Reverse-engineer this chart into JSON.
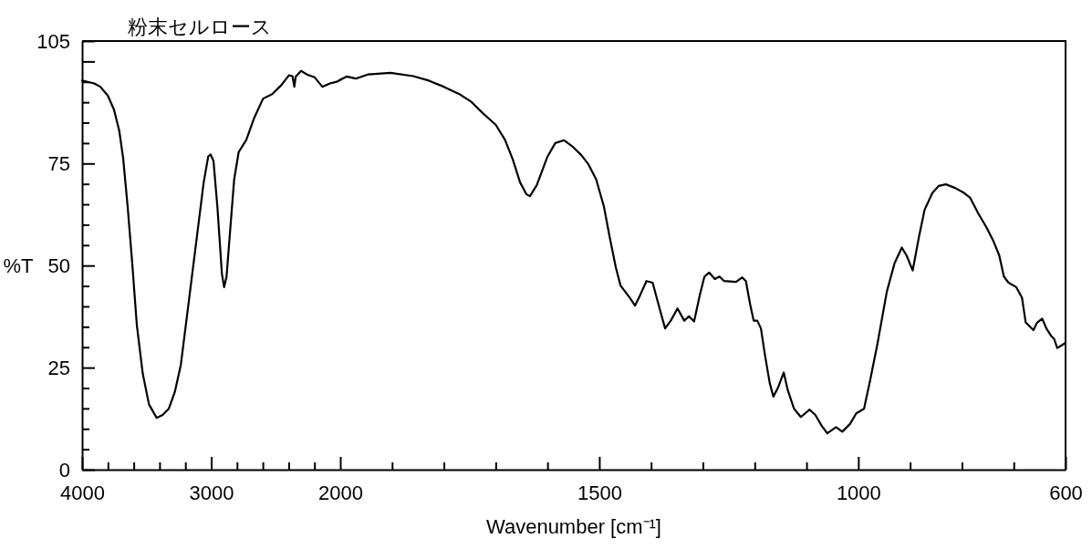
{
  "chart_data": [
    {
      "type": "line",
      "title": "粉末セルロース",
      "ylabel": "%T",
      "line_style": "solid",
      "color": "#000000",
      "xlim": [
        4000,
        2000
      ],
      "ylim": [
        0,
        105
      ],
      "xticks": [
        4000,
        {
          "value": 3800,
          "label": null
        },
        {
          "value": 3600,
          "label": null
        },
        {
          "value": 3400,
          "label": null
        },
        {
          "value": 3200,
          "label": null
        },
        3000,
        {
          "value": 2800,
          "label": null
        },
        {
          "value": 2600,
          "label": null
        },
        {
          "value": 2400,
          "label": null
        },
        {
          "value": 2200,
          "label": null
        },
        2000
      ],
      "yticks": [
        0,
        {
          "value": 5,
          "label": null
        },
        {
          "value": 10,
          "label": null
        },
        {
          "value": 15,
          "label": null
        },
        {
          "value": 20,
          "label": null
        },
        25,
        {
          "value": 30,
          "label": null
        },
        {
          "value": 35,
          "label": null
        },
        {
          "value": 40,
          "label": null
        },
        {
          "value": 45,
          "label": null
        },
        50,
        {
          "value": 55,
          "label": null
        },
        {
          "value": 60,
          "label": null
        },
        {
          "value": 65,
          "label": null
        },
        {
          "value": 70,
          "label": null
        },
        75,
        {
          "value": 80,
          "label": null
        },
        {
          "value": 85,
          "label": null
        },
        {
          "value": 90,
          "label": null
        },
        {
          "value": 95,
          "label": null
        },
        {
          "value": 100,
          "label": null
        },
        105
      ],
      "x": [
        4000,
        3906,
        3859,
        3800,
        3753,
        3712,
        3682,
        3647,
        3611,
        3576,
        3530,
        3482,
        3423,
        3376,
        3329,
        3282,
        3235,
        3176,
        3117,
        3058,
        3023,
        3004,
        2982,
        2952,
        2917,
        2900,
        2881,
        2850,
        2822,
        2787,
        2728,
        2669,
        2598,
        2528,
        2457,
        2398,
        2370,
        2356,
        2345,
        2304,
        2257,
        2198,
        2139,
        2080,
        2021,
        2000
      ],
      "values": [
        95.3,
        94.6,
        93.8,
        91.6,
        88.2,
        83.0,
        76.3,
        64.4,
        50.3,
        35.4,
        23.5,
        16.0,
        12.7,
        13.4,
        14.9,
        19.0,
        25.7,
        40.6,
        55.5,
        70.4,
        76.7,
        77.2,
        75.6,
        64.4,
        48.0,
        44.7,
        47.3,
        59.9,
        71.1,
        77.8,
        80.8,
        86.0,
        90.9,
        92.0,
        94.2,
        96.6,
        96.4,
        93.8,
        96.3,
        97.7,
        96.8,
        96.1,
        93.8,
        94.6,
        95.1,
        95.5
      ]
    },
    {
      "type": "line",
      "xlabel": "Wavenumber [cm⁻¹]",
      "line_style": "solid",
      "color": "#000000",
      "xlim": [
        2000,
        600
      ],
      "ylim": [
        0,
        105
      ],
      "tick_labels": "x",
      "xticks": [
        {
          "value": 1900,
          "label": null
        },
        {
          "value": 1800,
          "label": null
        },
        {
          "value": 1700,
          "label": null
        },
        {
          "value": 1600,
          "label": null
        },
        1500,
        {
          "value": 1400,
          "label": null
        },
        {
          "value": 1300,
          "label": null
        },
        {
          "value": 1200,
          "label": null
        },
        {
          "value": 1100,
          "label": null
        },
        1000,
        {
          "value": 900,
          "label": null
        },
        {
          "value": 800,
          "label": null
        },
        {
          "value": 700,
          "label": null
        },
        600
      ],
      "x": [
        2000,
        1988,
        1970,
        1947,
        1903,
        1859,
        1829,
        1800,
        1770,
        1747,
        1723,
        1700,
        1682,
        1667,
        1653,
        1641,
        1634,
        1621,
        1600,
        1585,
        1568,
        1553,
        1535,
        1521,
        1506,
        1491,
        1480,
        1468,
        1459,
        1441,
        1431,
        1421,
        1409,
        1397,
        1386,
        1373,
        1362,
        1349,
        1336,
        1327,
        1317,
        1306,
        1297,
        1288,
        1277,
        1268,
        1259,
        1236,
        1224,
        1217,
        1209,
        1202,
        1195,
        1188,
        1180,
        1171,
        1164,
        1155,
        1144,
        1136,
        1124,
        1111,
        1094,
        1083,
        1071,
        1060,
        1043,
        1031,
        1016,
        1004,
        989,
        977,
        963,
        945,
        930,
        916,
        907,
        895,
        883,
        872,
        857,
        845,
        831,
        813,
        796,
        784,
        769,
        752,
        740,
        728,
        719,
        710,
        695,
        684,
        677,
        662,
        655,
        645,
        637,
        628,
        622,
        616,
        607,
        600
      ],
      "values": [
        95.5,
        96.3,
        95.8,
        96.8,
        97.2,
        96.4,
        95.3,
        93.8,
        92.0,
        90.1,
        87.1,
        84.5,
        80.8,
        76.0,
        70.4,
        67.5,
        67.0,
        69.6,
        76.7,
        80.0,
        80.7,
        79.3,
        77.1,
        74.8,
        71.1,
        64.4,
        57.0,
        49.5,
        45.1,
        42.1,
        40.2,
        42.8,
        46.2,
        45.8,
        40.6,
        34.6,
        36.5,
        39.5,
        36.5,
        37.6,
        36.3,
        42.8,
        47.3,
        48.3,
        46.7,
        47.3,
        46.2,
        46.0,
        47.1,
        46.2,
        40.6,
        36.5,
        36.5,
        34.6,
        27.9,
        21.2,
        17.9,
        20.1,
        23.8,
        19.4,
        14.9,
        12.9,
        14.7,
        13.4,
        10.8,
        8.9,
        10.4,
        9.3,
        11.2,
        13.8,
        14.9,
        22.0,
        30.9,
        43.6,
        50.6,
        54.4,
        52.5,
        48.8,
        57.0,
        63.7,
        67.8,
        69.5,
        69.9,
        69.0,
        67.8,
        66.6,
        62.9,
        59.2,
        56.2,
        52.5,
        47.3,
        45.8,
        44.7,
        42.1,
        36.1,
        34.2,
        36.0,
        37.0,
        34.6,
        32.8,
        32.0,
        29.8,
        30.5,
        31.1
      ]
    }
  ]
}
